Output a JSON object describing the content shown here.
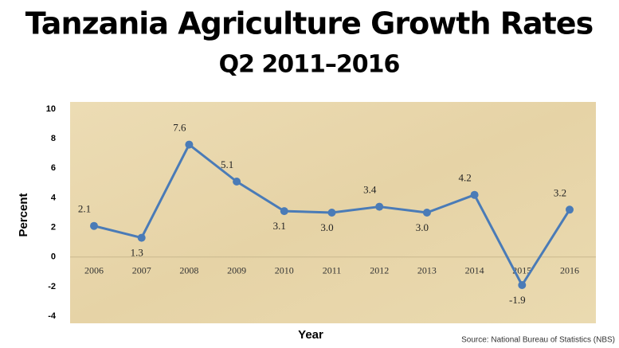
{
  "chart_data": {
    "type": "line",
    "title": "Tanzania Agriculture Growth Rates",
    "subtitle": "Q2 2011–2016",
    "x_label": "Year",
    "y_label": "Percent",
    "source": "Source: National Bureau of Statistics (NBS)",
    "categories": [
      "2006",
      "2007",
      "2008",
      "2009",
      "2010",
      "2011",
      "2012",
      "2013",
      "2014",
      "2015",
      "2016"
    ],
    "values": [
      2.1,
      1.3,
      7.6,
      5.1,
      3.1,
      3.0,
      3.4,
      3.0,
      4.2,
      -1.9,
      3.2
    ],
    "value_labels": [
      "2.1",
      "1.3",
      "7.6",
      "5.1",
      "3.1",
      "3.0",
      "3.4",
      "3.0",
      "4.2",
      "-1.9",
      "3.2"
    ],
    "color": "#4a7bb7",
    "ylim": [
      -4,
      10
    ],
    "yticks": [
      -4,
      -2,
      0,
      2,
      4,
      6,
      8,
      10
    ]
  }
}
